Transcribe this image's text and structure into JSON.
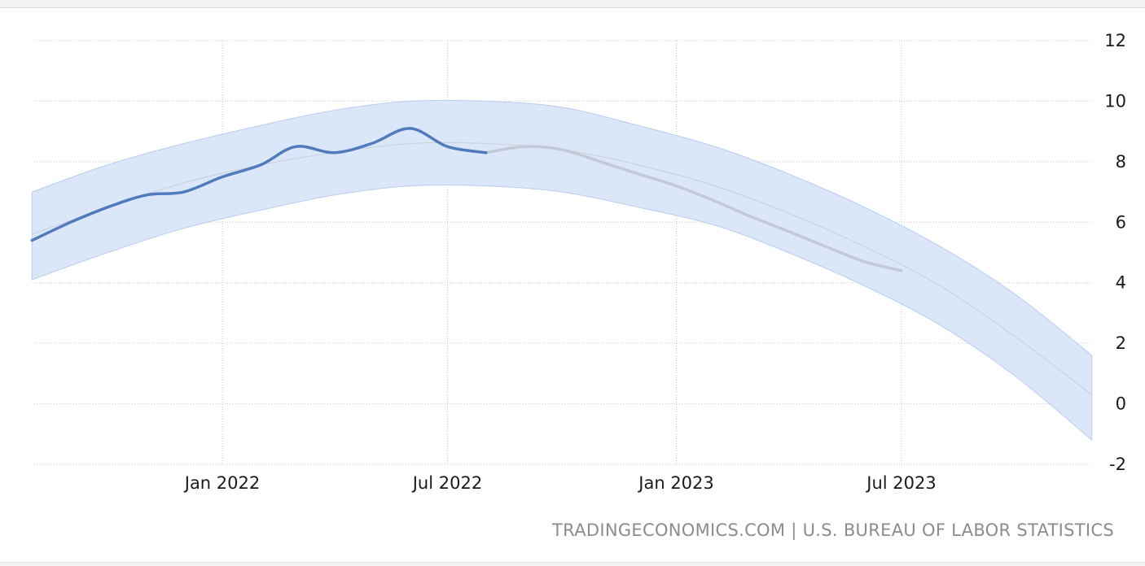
{
  "source_text": "TRADINGECONOMICS.COM | U.S. BUREAU OF LABOR STATISTICS",
  "colors": {
    "actual": "#4f7bbd",
    "forecast": "#c2cad6",
    "band": "#dbe6f8",
    "band_edge": "#b9cdee",
    "trend": "#c9d0dc",
    "grid": "#c8c8c8"
  },
  "chart_data": {
    "type": "line",
    "title": "",
    "xlabel": "",
    "ylabel": "",
    "ylim": [
      -2,
      12
    ],
    "yticks": [
      12,
      10,
      8,
      6,
      4,
      2,
      0,
      -2
    ],
    "xticks": [
      {
        "label": "Jan 2022",
        "date": "2022-01-01"
      },
      {
        "label": "Jul 2022",
        "date": "2022-07-01"
      },
      {
        "label": "Jan 2023",
        "date": "2023-01-01"
      },
      {
        "label": "Jul 2023",
        "date": "2023-07-01"
      }
    ],
    "grid": true,
    "series": [
      {
        "role": "actual",
        "x": [
          "2021-08-01",
          "2021-09-01",
          "2021-10-01",
          "2021-11-01",
          "2021-12-01",
          "2022-01-01",
          "2022-02-01",
          "2022-03-01",
          "2022-04-01",
          "2022-05-01",
          "2022-06-01",
          "2022-07-01",
          "2022-08-01"
        ],
        "values": [
          5.4,
          6.0,
          6.5,
          6.9,
          7.0,
          7.5,
          7.9,
          8.5,
          8.3,
          8.6,
          9.1,
          8.5,
          8.3
        ]
      },
      {
        "role": "forecast",
        "x": [
          "2022-08-01",
          "2022-09-01",
          "2022-10-01",
          "2022-11-01",
          "2022-12-01",
          "2023-01-01",
          "2023-02-01",
          "2023-03-01",
          "2023-04-01",
          "2023-05-01",
          "2023-06-01",
          "2023-07-01"
        ],
        "values": [
          8.3,
          8.5,
          8.4,
          8.0,
          7.6,
          7.2,
          6.7,
          6.2,
          5.7,
          5.2,
          4.7,
          4.4
        ]
      },
      {
        "role": "trend",
        "x": [
          "2021-08-01",
          "2021-10-01",
          "2021-12-01",
          "2022-02-01",
          "2022-04-01",
          "2022-06-01",
          "2022-08-01",
          "2022-10-01",
          "2022-12-01",
          "2023-02-01",
          "2023-04-01",
          "2023-06-01",
          "2023-08-01",
          "2023-10-01",
          "2023-12-01"
        ],
        "values": [
          5.6,
          6.5,
          7.3,
          7.9,
          8.3,
          8.6,
          8.6,
          8.4,
          7.9,
          7.2,
          6.3,
          5.2,
          3.9,
          2.2,
          0.3
        ]
      }
    ],
    "band": {
      "x": [
        "2021-08-01",
        "2021-10-01",
        "2021-12-01",
        "2022-02-01",
        "2022-04-01",
        "2022-06-01",
        "2022-08-01",
        "2022-10-01",
        "2022-12-01",
        "2023-02-01",
        "2023-04-01",
        "2023-06-01",
        "2023-08-01",
        "2023-10-01",
        "2023-12-01"
      ],
      "upper": [
        7.0,
        7.9,
        8.6,
        9.2,
        9.7,
        10.0,
        10.0,
        9.8,
        9.2,
        8.5,
        7.6,
        6.5,
        5.2,
        3.6,
        1.6
      ],
      "lower": [
        4.1,
        5.0,
        5.8,
        6.4,
        6.9,
        7.2,
        7.2,
        7.0,
        6.5,
        5.9,
        5.0,
        3.9,
        2.6,
        0.9,
        -1.2
      ]
    }
  }
}
